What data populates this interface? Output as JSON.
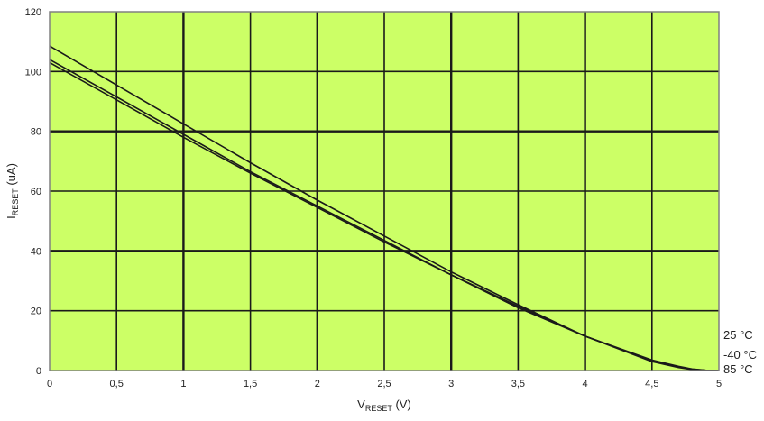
{
  "chart_data": {
    "type": "line",
    "title": "",
    "xlabel": {
      "main": "V",
      "sub": "RESET",
      "tail": " (V)"
    },
    "ylabel": {
      "main": "I",
      "sub": "RESET",
      "tail": " (uA)"
    },
    "xlim": [
      0,
      5
    ],
    "ylim": [
      0,
      120
    ],
    "x_ticks": [
      0,
      0.5,
      1,
      1.5,
      2,
      2.5,
      3,
      3.5,
      4,
      4.5,
      5
    ],
    "x_tick_labels": [
      "0",
      "0,5",
      "1",
      "1,5",
      "2",
      "2,5",
      "3",
      "3,5",
      "4",
      "4,5",
      "5"
    ],
    "y_ticks": [
      0,
      20,
      40,
      60,
      80,
      100,
      120
    ],
    "y_tick_labels": [
      "0",
      "20",
      "40",
      "60",
      "80",
      "100",
      "120"
    ],
    "grid": true,
    "colors": {
      "plot_background": "#ccff66",
      "grid_major": "#1a1a1a",
      "grid_minor": "#1a1a1a",
      "series_line": "#1a1a1a",
      "plot_border": "#808080"
    },
    "series": [
      {
        "name": "25 °C",
        "x": [
          0,
          0.5,
          1,
          1.5,
          2,
          2.5,
          3,
          3.5,
          4,
          4.5,
          4.7,
          4.8,
          4.9,
          5
        ],
        "y": [
          108.5,
          95.5,
          82.5,
          69.5,
          57,
          45,
          33,
          22,
          11.5,
          3.2,
          1.2,
          0.4,
          0.1,
          0
        ]
      },
      {
        "name": "-40 °C",
        "x": [
          0,
          0.5,
          1,
          1.5,
          2,
          2.5,
          3,
          3.5,
          4,
          4.5,
          4.7,
          4.8,
          4.9,
          5
        ],
        "y": [
          104,
          91.5,
          79,
          66.5,
          55,
          43.5,
          32,
          21.5,
          11.5,
          3.5,
          1.4,
          0.5,
          0.1,
          0
        ]
      },
      {
        "name": "85 °C",
        "x": [
          0,
          0.5,
          1,
          1.5,
          2,
          2.5,
          3,
          3.5,
          4,
          4.5,
          4.7,
          4.8,
          4.9,
          5
        ],
        "y": [
          103,
          90.5,
          78,
          66,
          54.5,
          43,
          32,
          21,
          11.5,
          3,
          1,
          0.3,
          0.05,
          0
        ]
      }
    ]
  }
}
